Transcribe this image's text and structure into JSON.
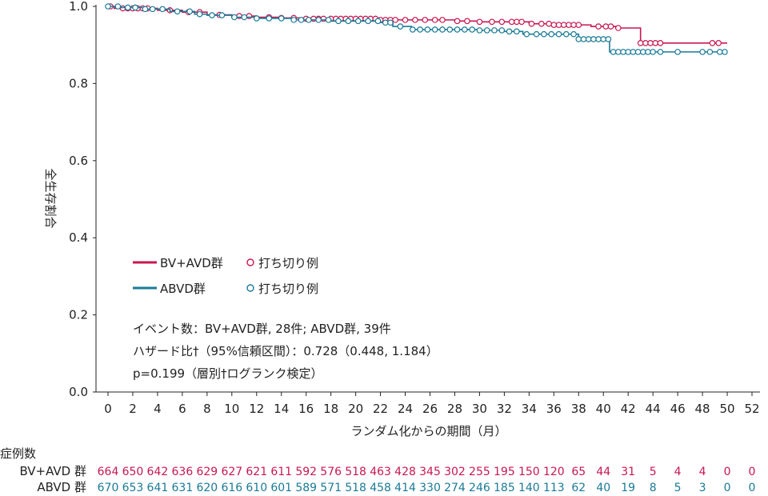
{
  "chart_data": {
    "type": "line",
    "xlabel": "ランダム化からの期間（月）",
    "ylabel": "全生存割合",
    "xlim": [
      0,
      52
    ],
    "ylim": [
      0.0,
      1.0
    ],
    "x_ticks": [
      0,
      2,
      4,
      6,
      8,
      10,
      12,
      14,
      16,
      18,
      20,
      22,
      24,
      26,
      28,
      30,
      32,
      34,
      36,
      38,
      40,
      42,
      44,
      46,
      48,
      50,
      52
    ],
    "y_ticks": [
      "0.0",
      "0.2",
      "0.4",
      "0.6",
      "0.8",
      "1.0"
    ],
    "grid": false,
    "legend_position": "middle-left",
    "series": [
      {
        "name": "BV+AVD群",
        "censor_label": "打ち切り例",
        "color": "#c8174f",
        "steps": [
          [
            0,
            1.0
          ],
          [
            0.5,
            0.995
          ],
          [
            4,
            0.99
          ],
          [
            6,
            0.985
          ],
          [
            8,
            0.978
          ],
          [
            10,
            0.975
          ],
          [
            12,
            0.972
          ],
          [
            14,
            0.97
          ],
          [
            16,
            0.968
          ],
          [
            22,
            0.965
          ],
          [
            28,
            0.962
          ],
          [
            30,
            0.96
          ],
          [
            34,
            0.955
          ],
          [
            36,
            0.952
          ],
          [
            39,
            0.948
          ],
          [
            41,
            0.944
          ],
          [
            43,
            0.905
          ],
          [
            50,
            0.905
          ]
        ],
        "censored": [
          0.2,
          1.2,
          1.6,
          2,
          2.4,
          2.8,
          3.2,
          5,
          6.5,
          7.4,
          9,
          10.6,
          11.4,
          13,
          14,
          15,
          16,
          16.6,
          17,
          17.4,
          18,
          18.4,
          18.8,
          19.2,
          19.6,
          20,
          20.4,
          20.8,
          21.2,
          21.6,
          22,
          22.4,
          22.8,
          23.2,
          24,
          24.8,
          25.6,
          26.4,
          27,
          28.2,
          29,
          30,
          31,
          31.8,
          32.6,
          33,
          33.4,
          34.2,
          35,
          35.6,
          36,
          36.4,
          36.8,
          37.2,
          37.6,
          38,
          39.6,
          40.2,
          40.6,
          41.2,
          43,
          43.4,
          43.8,
          44.2,
          44.6,
          48.8,
          49.3
        ],
        "at_risk": [
          "664",
          "650",
          "642",
          "636",
          "629",
          "627",
          "621",
          "611",
          "592",
          "576",
          "518",
          "463",
          "428",
          "345",
          "302",
          "255",
          "195",
          "150",
          "120",
          "65",
          "44",
          "31",
          "5",
          "4",
          "4",
          "0",
          "0"
        ]
      },
      {
        "name": "ABVD群",
        "censor_label": "打ち切り例",
        "color": "#1a7a96",
        "steps": [
          [
            0,
            1.0
          ],
          [
            1,
            0.997
          ],
          [
            3,
            0.993
          ],
          [
            5,
            0.987
          ],
          [
            7,
            0.98
          ],
          [
            8,
            0.977
          ],
          [
            10,
            0.972
          ],
          [
            12,
            0.969
          ],
          [
            15,
            0.965
          ],
          [
            18,
            0.962
          ],
          [
            22,
            0.958
          ],
          [
            23,
            0.948
          ],
          [
            24.5,
            0.94
          ],
          [
            30,
            0.938
          ],
          [
            32,
            0.935
          ],
          [
            33.5,
            0.928
          ],
          [
            38,
            0.915
          ],
          [
            40.5,
            0.882
          ],
          [
            50,
            0.882
          ]
        ],
        "censored": [
          0,
          0.8,
          1.6,
          2.2,
          3,
          3.6,
          4.4,
          5.6,
          6.6,
          7.4,
          8.4,
          9.2,
          10.2,
          11,
          12,
          13,
          14,
          15,
          15.6,
          16.2,
          17,
          17.8,
          18.6,
          19.4,
          20.2,
          21,
          21.8,
          22.4,
          22.8,
          23.6,
          24.6,
          25.2,
          25.8,
          26.4,
          27,
          27.6,
          28.2,
          28.8,
          29.4,
          30,
          30.6,
          31.2,
          31.8,
          32.4,
          33,
          33.8,
          34.6,
          35.2,
          35.8,
          36.4,
          37,
          37.6,
          38,
          38.4,
          38.8,
          39.2,
          39.6,
          40,
          40.4,
          40.8,
          41.2,
          41.6,
          42,
          42.4,
          42.8,
          43.2,
          43.6,
          44,
          44.6,
          46,
          48,
          48.6,
          49.4,
          49.8
        ],
        "at_risk": [
          "670",
          "653",
          "641",
          "631",
          "620",
          "616",
          "610",
          "601",
          "589",
          "571",
          "518",
          "458",
          "414",
          "330",
          "274",
          "246",
          "185",
          "140",
          "113",
          "62",
          "40",
          "19",
          "8",
          "5",
          "3",
          "0",
          "0"
        ]
      }
    ],
    "annotations": [
      "イベント数：BV+AVD群, 28件; ABVD群, 39件",
      "ハザード比†（95%信頼区間）：0.728（0.448, 1.184）",
      "p=0.199（層別†ログランク検定）"
    ],
    "risk_table": {
      "title": "症例数",
      "row_labels": [
        "BV+AVD 群",
        "ABVD 群"
      ]
    }
  }
}
